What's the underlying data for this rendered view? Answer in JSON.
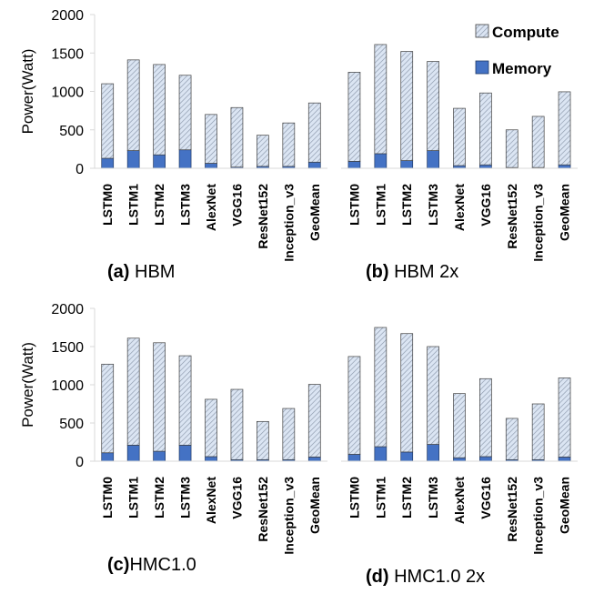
{
  "colors": {
    "compute_fill": "#dbe5f3",
    "compute_hatch": "#8c98ab",
    "memory": "#4472c4",
    "memory_edge": "#1f3864",
    "axis": "#d9d9d9"
  },
  "legend": {
    "compute": "Compute",
    "memory": "Memory"
  },
  "chart_data": [
    {
      "type": "bar",
      "stacked": true,
      "caption_bold": "(a)",
      "caption_rest": " HBM",
      "ylabel": "Power(Watt)",
      "ylim": [
        0,
        2000
      ],
      "yticks": [
        0,
        500,
        1000,
        1500,
        2000
      ],
      "categories": [
        "LSTM0",
        "LSTM1",
        "LSTM2",
        "LSTM3",
        "AlexNet",
        "VGG16",
        "ResNet152",
        "Inception_v3",
        "GeoMean"
      ],
      "series": [
        {
          "name": "Memory",
          "values": [
            130,
            230,
            175,
            240,
            65,
            15,
            25,
            25,
            80
          ]
        },
        {
          "name": "Compute",
          "values": [
            970,
            1180,
            1175,
            970,
            635,
            775,
            405,
            565,
            770
          ]
        }
      ]
    },
    {
      "type": "bar",
      "stacked": true,
      "caption_bold": "(b)",
      "caption_rest": " HBM 2x",
      "ylabel": "",
      "ylim": [
        0,
        2000
      ],
      "yticks": [
        0,
        500,
        1000,
        1500,
        2000
      ],
      "categories": [
        "LSTM0",
        "LSTM1",
        "LSTM2",
        "LSTM3",
        "AlexNet",
        "VGG16",
        "ResNet152",
        "Inception_v3",
        "GeoMean"
      ],
      "series": [
        {
          "name": "Memory",
          "values": [
            90,
            190,
            100,
            230,
            35,
            45,
            10,
            10,
            45
          ]
        },
        {
          "name": "Compute",
          "values": [
            1160,
            1420,
            1420,
            1160,
            745,
            935,
            490,
            665,
            950
          ]
        }
      ]
    },
    {
      "type": "bar",
      "stacked": true,
      "caption_bold": "(c)",
      "caption_rest": "HMC1.0",
      "ylabel": "Power(Watt)",
      "ylim": [
        0,
        2000
      ],
      "yticks": [
        0,
        500,
        1000,
        1500,
        2000
      ],
      "categories": [
        "LSTM0",
        "LSTM1",
        "LSTM2",
        "LSTM3",
        "AlexNet",
        "VGG16",
        "ResNet152",
        "Inception_v3",
        "GeoMean"
      ],
      "series": [
        {
          "name": "Memory",
          "values": [
            110,
            210,
            130,
            210,
            60,
            20,
            20,
            20,
            55
          ]
        },
        {
          "name": "Compute",
          "values": [
            1160,
            1400,
            1420,
            1170,
            750,
            920,
            500,
            670,
            950
          ]
        }
      ]
    },
    {
      "type": "bar",
      "stacked": true,
      "caption_bold": "(d)",
      "caption_rest": " HMC1.0 2x",
      "ylabel": "",
      "ylim": [
        0,
        2000
      ],
      "yticks": [
        0,
        500,
        1000,
        1500,
        2000
      ],
      "categories": [
        "LSTM0",
        "LSTM1",
        "LSTM2",
        "LSTM3",
        "AlexNet",
        "VGG16",
        "ResNet152",
        "Inception_v3",
        "GeoMean"
      ],
      "series": [
        {
          "name": "Memory",
          "values": [
            90,
            190,
            120,
            220,
            45,
            60,
            20,
            20,
            55
          ]
        },
        {
          "name": "Compute",
          "values": [
            1280,
            1560,
            1550,
            1280,
            840,
            1020,
            540,
            730,
            1035
          ]
        }
      ]
    }
  ]
}
